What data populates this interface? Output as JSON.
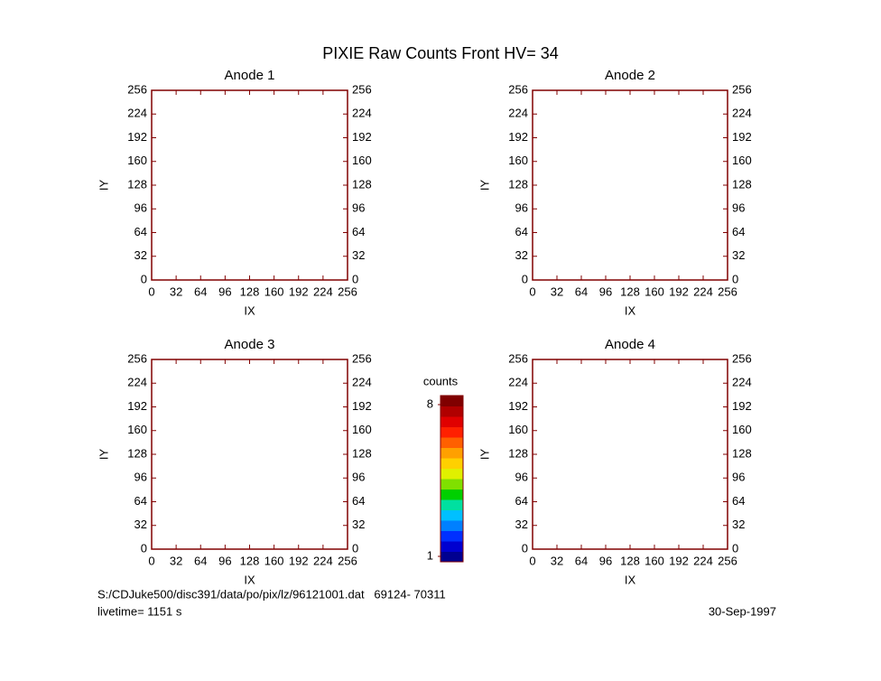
{
  "title": "PIXIE Raw Counts Front HV= 34",
  "chart_data": [
    {
      "type": "heatmap",
      "title": "Anode 1",
      "xlabel": "IX",
      "ylabel": "IY",
      "xlim": [
        0,
        256
      ],
      "ylim": [
        0,
        256
      ],
      "xticks": [
        0,
        32,
        64,
        96,
        128,
        160,
        192,
        224,
        256
      ],
      "yticks": [
        0,
        32,
        64,
        96,
        128,
        160,
        192,
        224,
        256
      ]
    },
    {
      "type": "heatmap",
      "title": "Anode 2",
      "xlabel": "IX",
      "ylabel": "IY",
      "xlim": [
        0,
        256
      ],
      "ylim": [
        0,
        256
      ],
      "xticks": [
        0,
        32,
        64,
        96,
        128,
        160,
        192,
        224,
        256
      ],
      "yticks": [
        0,
        32,
        64,
        96,
        128,
        160,
        192,
        224,
        256
      ]
    },
    {
      "type": "heatmap",
      "title": "Anode 3",
      "xlabel": "IX",
      "ylabel": "IY",
      "xlim": [
        0,
        256
      ],
      "ylim": [
        0,
        256
      ],
      "xticks": [
        0,
        32,
        64,
        96,
        128,
        160,
        192,
        224,
        256
      ],
      "yticks": [
        0,
        32,
        64,
        96,
        128,
        160,
        192,
        224,
        256
      ]
    },
    {
      "type": "heatmap",
      "title": "Anode 4",
      "xlabel": "IX",
      "ylabel": "IY",
      "xlim": [
        0,
        256
      ],
      "ylim": [
        0,
        256
      ],
      "xticks": [
        0,
        32,
        64,
        96,
        128,
        160,
        192,
        224,
        256
      ],
      "yticks": [
        0,
        32,
        64,
        96,
        128,
        160,
        192,
        224,
        256
      ]
    }
  ],
  "colorbar": {
    "label": "counts",
    "lim": [
      1,
      8
    ],
    "ticks": [
      1,
      8
    ],
    "colors": [
      "#000090",
      "#0000d0",
      "#0030ff",
      "#0080ff",
      "#00c0ff",
      "#00e0a0",
      "#00d000",
      "#80e000",
      "#e0f000",
      "#ffd000",
      "#ffa000",
      "#ff6000",
      "#ff2000",
      "#e00000",
      "#b00000",
      "#800000"
    ]
  },
  "footer": {
    "file": "S:/CDJuke500/disc391/data/po/pix/lz/96121001.dat   69124- 70311",
    "livetime": "livetime= 1151 s",
    "date": "30-Sep-1997"
  }
}
